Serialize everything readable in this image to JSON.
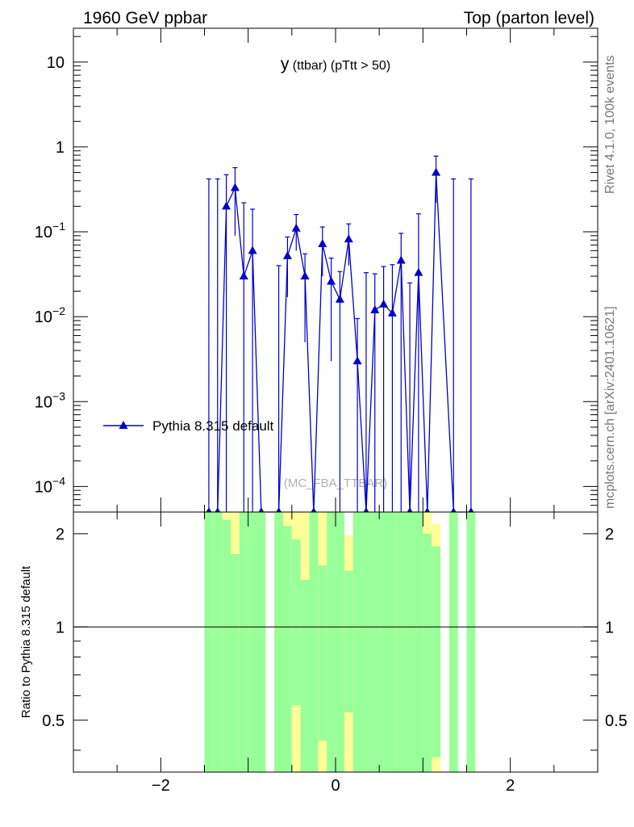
{
  "header": {
    "left": "1960 GeV ppbar",
    "right": "Top (parton level)"
  },
  "side_labels": {
    "rivet": "Rivet 4.1.0,  100k events",
    "mcplots": "mcplots.cern.ch [arXiv:2401.10621]"
  },
  "chart_data": [
    {
      "type": "line",
      "title": "y (ttbar) (pTtt > 50)",
      "title_main": "y",
      "title_sub": " (ttbar) (pTtt > 50)",
      "watermark": "(MC_FBA_TTBAR)",
      "xlim": [
        -3.0,
        3.0
      ],
      "ylim": [
        5e-05,
        25
      ],
      "yscale": "log",
      "ytick_labels": [
        {
          "value": 10,
          "label": "10"
        },
        {
          "value": 1,
          "label": "1"
        },
        {
          "value": 0.1,
          "base": "10",
          "exp": "−1"
        },
        {
          "value": 0.01,
          "base": "10",
          "exp": "−2"
        },
        {
          "value": 0.001,
          "base": "10",
          "exp": "−3"
        },
        {
          "value": 0.0001,
          "base": "10",
          "exp": "−4"
        }
      ],
      "series": [
        {
          "name": "Pythia 8.315 default",
          "color": "#0000cc",
          "marker": "triangle",
          "points": [
            {
              "x": -1.45,
              "y": 0,
              "err": 0.42
            },
            {
              "x": -1.35,
              "y": 0,
              "err": 0.42
            },
            {
              "x": -1.25,
              "y": 0.2,
              "err": 0.27
            },
            {
              "x": -1.15,
              "y": 0.33,
              "err": 0.24
            },
            {
              "x": -1.05,
              "y": 0.03,
              "err": 0.19
            },
            {
              "x": -0.95,
              "y": 0.06,
              "err": 0.125
            },
            {
              "x": -0.85,
              "y": 0,
              "err": 0.0
            },
            {
              "x": -0.65,
              "y": 0,
              "err": 0.04
            },
            {
              "x": -0.55,
              "y": 0.052,
              "err": 0.035
            },
            {
              "x": -0.45,
              "y": 0.11,
              "err": 0.05
            },
            {
              "x": -0.35,
              "y": 0.03,
              "err": 0.025
            },
            {
              "x": -0.25,
              "y": 0,
              "err": 0.0
            },
            {
              "x": -0.15,
              "y": 0.072,
              "err": 0.042
            },
            {
              "x": -0.05,
              "y": 0.026,
              "err": 0.023
            },
            {
              "x": 0.05,
              "y": 0.016,
              "err": 0.018
            },
            {
              "x": 0.15,
              "y": 0.082,
              "err": 0.042
            },
            {
              "x": 0.25,
              "y": 0.003,
              "err": 0.0065
            },
            {
              "x": 0.35,
              "y": 0,
              "err": 0.033
            },
            {
              "x": 0.45,
              "y": 0.012,
              "err": 0.02
            },
            {
              "x": 0.55,
              "y": 0.014,
              "err": 0.025
            },
            {
              "x": 0.65,
              "y": 0.011,
              "err": 0.03
            },
            {
              "x": 0.75,
              "y": 0.046,
              "err": 0.05
            },
            {
              "x": 0.85,
              "y": 0,
              "err": 0.025
            },
            {
              "x": 0.95,
              "y": 0.033,
              "err": 0.13
            },
            {
              "x": 1.05,
              "y": 0,
              "err": 0.0
            },
            {
              "x": 1.15,
              "y": 0.5,
              "err": 0.28
            },
            {
              "x": 1.35,
              "y": 0,
              "err": 0.42
            },
            {
              "x": 1.55,
              "y": 0,
              "err": 0.42
            }
          ]
        }
      ]
    },
    {
      "type": "area",
      "ylabel": "Ratio to Pythia 8.315 default",
      "xlim": [
        -3.0,
        3.0
      ],
      "ylim": [
        0.34,
        2.35
      ],
      "yscale": "log",
      "xticks": [
        -2,
        0,
        2
      ],
      "xtick_labels": [
        "−2",
        "0",
        "2"
      ],
      "yticks": [
        0.5,
        1,
        2
      ],
      "ytick_labels": [
        "0.5",
        "1",
        "2"
      ],
      "reference_line": 1,
      "band_colors": {
        "outer": "#ffff99",
        "inner": "#99ff99"
      },
      "bins": [
        {
          "x0": -1.5,
          "x1": -1.4,
          "inner": [
            0.34,
            2.35
          ],
          "outer": [
            0.34,
            2.35
          ]
        },
        {
          "x0": -1.4,
          "x1": -1.3,
          "inner": [
            0.34,
            2.35
          ],
          "outer": [
            0.34,
            2.35
          ]
        },
        {
          "x0": -1.3,
          "x1": -1.2,
          "inner": [
            0.34,
            2.22
          ],
          "outer": [
            0.34,
            2.35
          ]
        },
        {
          "x0": -1.2,
          "x1": -1.1,
          "inner": [
            0.34,
            1.72
          ],
          "outer": [
            0.34,
            2.35
          ]
        },
        {
          "x0": -1.1,
          "x1": -1.0,
          "inner": [
            0.34,
            2.35
          ],
          "outer": [
            0.34,
            2.35
          ]
        },
        {
          "x0": -1.0,
          "x1": -0.9,
          "inner": [
            0.34,
            2.35
          ],
          "outer": [
            0.34,
            2.35
          ]
        },
        {
          "x0": -0.9,
          "x1": -0.8,
          "inner": [
            0.34,
            2.35
          ],
          "outer": [
            0.34,
            2.35
          ]
        },
        {
          "x0": -0.7,
          "x1": -0.6,
          "inner": [
            0.34,
            2.35
          ],
          "outer": [
            0.34,
            2.35
          ]
        },
        {
          "x0": -0.6,
          "x1": -0.5,
          "inner": [
            0.34,
            2.12
          ],
          "outer": [
            0.34,
            2.35
          ]
        },
        {
          "x0": -0.5,
          "x1": -0.4,
          "inner": [
            0.56,
            1.92
          ],
          "outer": [
            0.34,
            2.35
          ]
        },
        {
          "x0": -0.4,
          "x1": -0.3,
          "inner": [
            0.34,
            1.42
          ],
          "outer": [
            0.34,
            2.35
          ]
        },
        {
          "x0": -0.3,
          "x1": -0.2,
          "inner": [
            0.34,
            2.35
          ],
          "outer": [
            0.34,
            2.35
          ]
        },
        {
          "x0": -0.2,
          "x1": -0.1,
          "inner": [
            0.43,
            1.58
          ],
          "outer": [
            0.34,
            2.35
          ]
        },
        {
          "x0": -0.1,
          "x1": 0.0,
          "inner": [
            0.34,
            2.35
          ],
          "outer": [
            0.34,
            2.35
          ]
        },
        {
          "x0": 0.0,
          "x1": 0.1,
          "inner": [
            0.34,
            2.35
          ],
          "outer": [
            0.34,
            2.35
          ]
        },
        {
          "x0": 0.1,
          "x1": 0.2,
          "inner": [
            0.53,
            1.52
          ],
          "outer": [
            0.34,
            1.98
          ]
        },
        {
          "x0": 0.2,
          "x1": 0.3,
          "inner": [
            0.34,
            2.35
          ],
          "outer": [
            0.34,
            2.35
          ]
        },
        {
          "x0": 0.3,
          "x1": 0.4,
          "inner": [
            0.34,
            2.35
          ],
          "outer": [
            0.34,
            2.35
          ]
        },
        {
          "x0": 0.4,
          "x1": 0.5,
          "inner": [
            0.34,
            2.35
          ],
          "outer": [
            0.34,
            2.35
          ]
        },
        {
          "x0": 0.5,
          "x1": 0.6,
          "inner": [
            0.34,
            2.35
          ],
          "outer": [
            0.34,
            2.35
          ]
        },
        {
          "x0": 0.6,
          "x1": 0.7,
          "inner": [
            0.34,
            2.35
          ],
          "outer": [
            0.34,
            2.35
          ]
        },
        {
          "x0": 0.7,
          "x1": 0.8,
          "inner": [
            0.34,
            2.35
          ],
          "outer": [
            0.34,
            2.35
          ]
        },
        {
          "x0": 0.8,
          "x1": 0.9,
          "inner": [
            0.34,
            2.35
          ],
          "outer": [
            0.34,
            2.35
          ]
        },
        {
          "x0": 0.9,
          "x1": 1.0,
          "inner": [
            0.34,
            2.35
          ],
          "outer": [
            0.34,
            2.35
          ]
        },
        {
          "x0": 1.0,
          "x1": 1.1,
          "inner": [
            0.34,
            2.0
          ],
          "outer": [
            0.34,
            2.35
          ]
        },
        {
          "x0": 1.1,
          "x1": 1.2,
          "inner": [
            0.38,
            1.82
          ],
          "outer": [
            0.34,
            2.15
          ]
        },
        {
          "x0": 1.3,
          "x1": 1.4,
          "inner": [
            0.34,
            2.35
          ],
          "outer": [
            0.34,
            2.35
          ]
        },
        {
          "x0": 1.5,
          "x1": 1.6,
          "inner": [
            0.34,
            2.35
          ],
          "outer": [
            0.34,
            2.35
          ]
        }
      ]
    }
  ]
}
